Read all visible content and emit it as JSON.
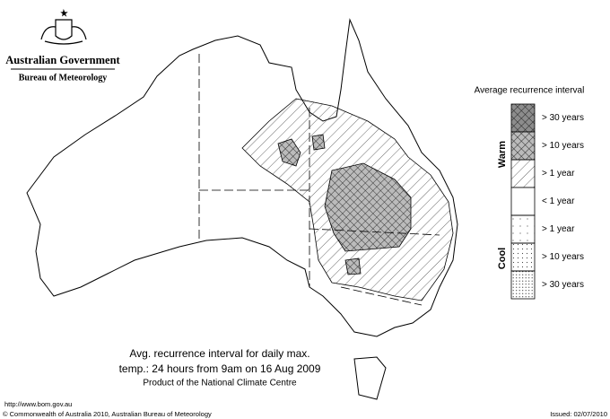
{
  "header": {
    "government": "Australian Government",
    "bureau": "Bureau of Meteorology"
  },
  "legend": {
    "title": "Average recurrence interval",
    "warm_label": "Warm",
    "cool_label": "Cool",
    "items": [
      "> 30 years",
      "> 10 years",
      "> 1 year",
      "< 1 year",
      "> 1 year",
      "> 10 years",
      "> 30 years"
    ]
  },
  "caption": {
    "line1": "Avg. recurrence interval for daily max.",
    "line2": "temp.: 24 hours from 9am on 16 Aug 2009",
    "line3": "Product of the National Climate Centre"
  },
  "footer": {
    "url": "http://www.bom.gov.au",
    "copyright": "© Commonwealth of Australia 2010, Australian Bureau of Meteorology",
    "issued": "Issued: 02/07/2010"
  }
}
